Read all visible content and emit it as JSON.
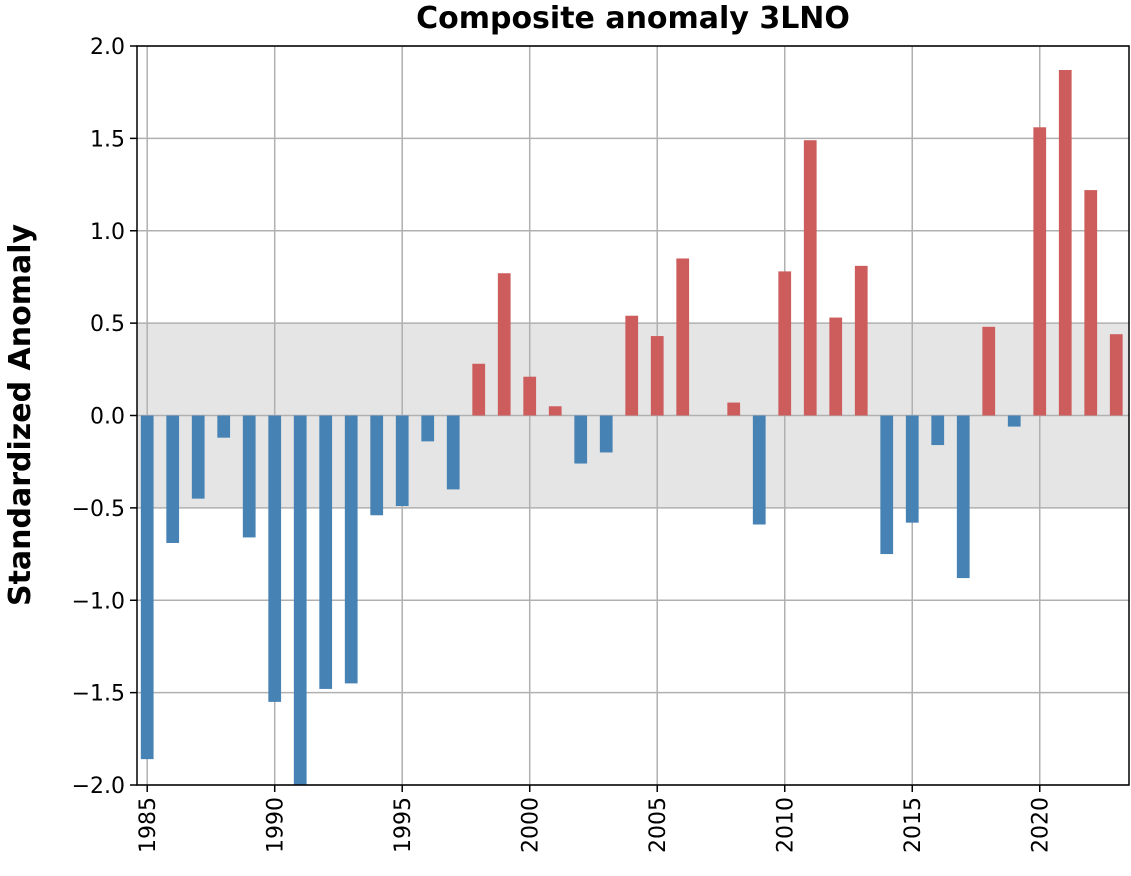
{
  "chart_data": {
    "type": "bar",
    "title": "Composite anomaly 3LNO",
    "xlabel": "",
    "ylabel": "Standardized Anomaly",
    "xlim": [
      1984.6,
      2023.5
    ],
    "ylim": [
      -2.0,
      2.0
    ],
    "grid": true,
    "legend": "none",
    "shaded_band": [
      -0.5,
      0.5
    ],
    "x_ticks": [
      1985,
      1990,
      1995,
      2000,
      2005,
      2010,
      2015,
      2020
    ],
    "x_tick_labels": [
      "1985",
      "1990",
      "1995",
      "2000",
      "2005",
      "2010",
      "2015",
      "2020"
    ],
    "y_ticks": [
      -2.0,
      -1.5,
      -1.0,
      -0.5,
      0.0,
      0.5,
      1.0,
      1.5,
      2.0
    ],
    "y_tick_labels": [
      "−2.0",
      "−1.5",
      "−1.0",
      "−0.5",
      "0.0",
      "0.5",
      "1.0",
      "1.5",
      "2.0"
    ],
    "x": [
      1985,
      1986,
      1987,
      1988,
      1989,
      1990,
      1991,
      1992,
      1993,
      1994,
      1995,
      1996,
      1997,
      1998,
      1999,
      2000,
      2001,
      2002,
      2003,
      2004,
      2005,
      2006,
      2007,
      2008,
      2009,
      2010,
      2011,
      2012,
      2013,
      2014,
      2015,
      2016,
      2017,
      2018,
      2019,
      2020,
      2021,
      2022,
      2023
    ],
    "values": [
      -1.86,
      -0.69,
      -0.45,
      -0.12,
      -0.66,
      -1.55,
      -2.0,
      -1.48,
      -1.45,
      -0.54,
      -0.49,
      -0.14,
      -0.4,
      0.28,
      0.77,
      0.21,
      0.05,
      -0.26,
      -0.2,
      0.54,
      0.43,
      0.85,
      null,
      0.07,
      -0.59,
      0.78,
      1.49,
      0.53,
      0.81,
      -0.75,
      -0.58,
      -0.16,
      -0.88,
      0.48,
      -0.06,
      1.56,
      1.87,
      1.22,
      0.44
    ],
    "colors": {
      "positive": "#cd5c5c",
      "negative": "#4682b4",
      "band": "#e5e5e5",
      "grid": "#b0b0b0"
    }
  }
}
